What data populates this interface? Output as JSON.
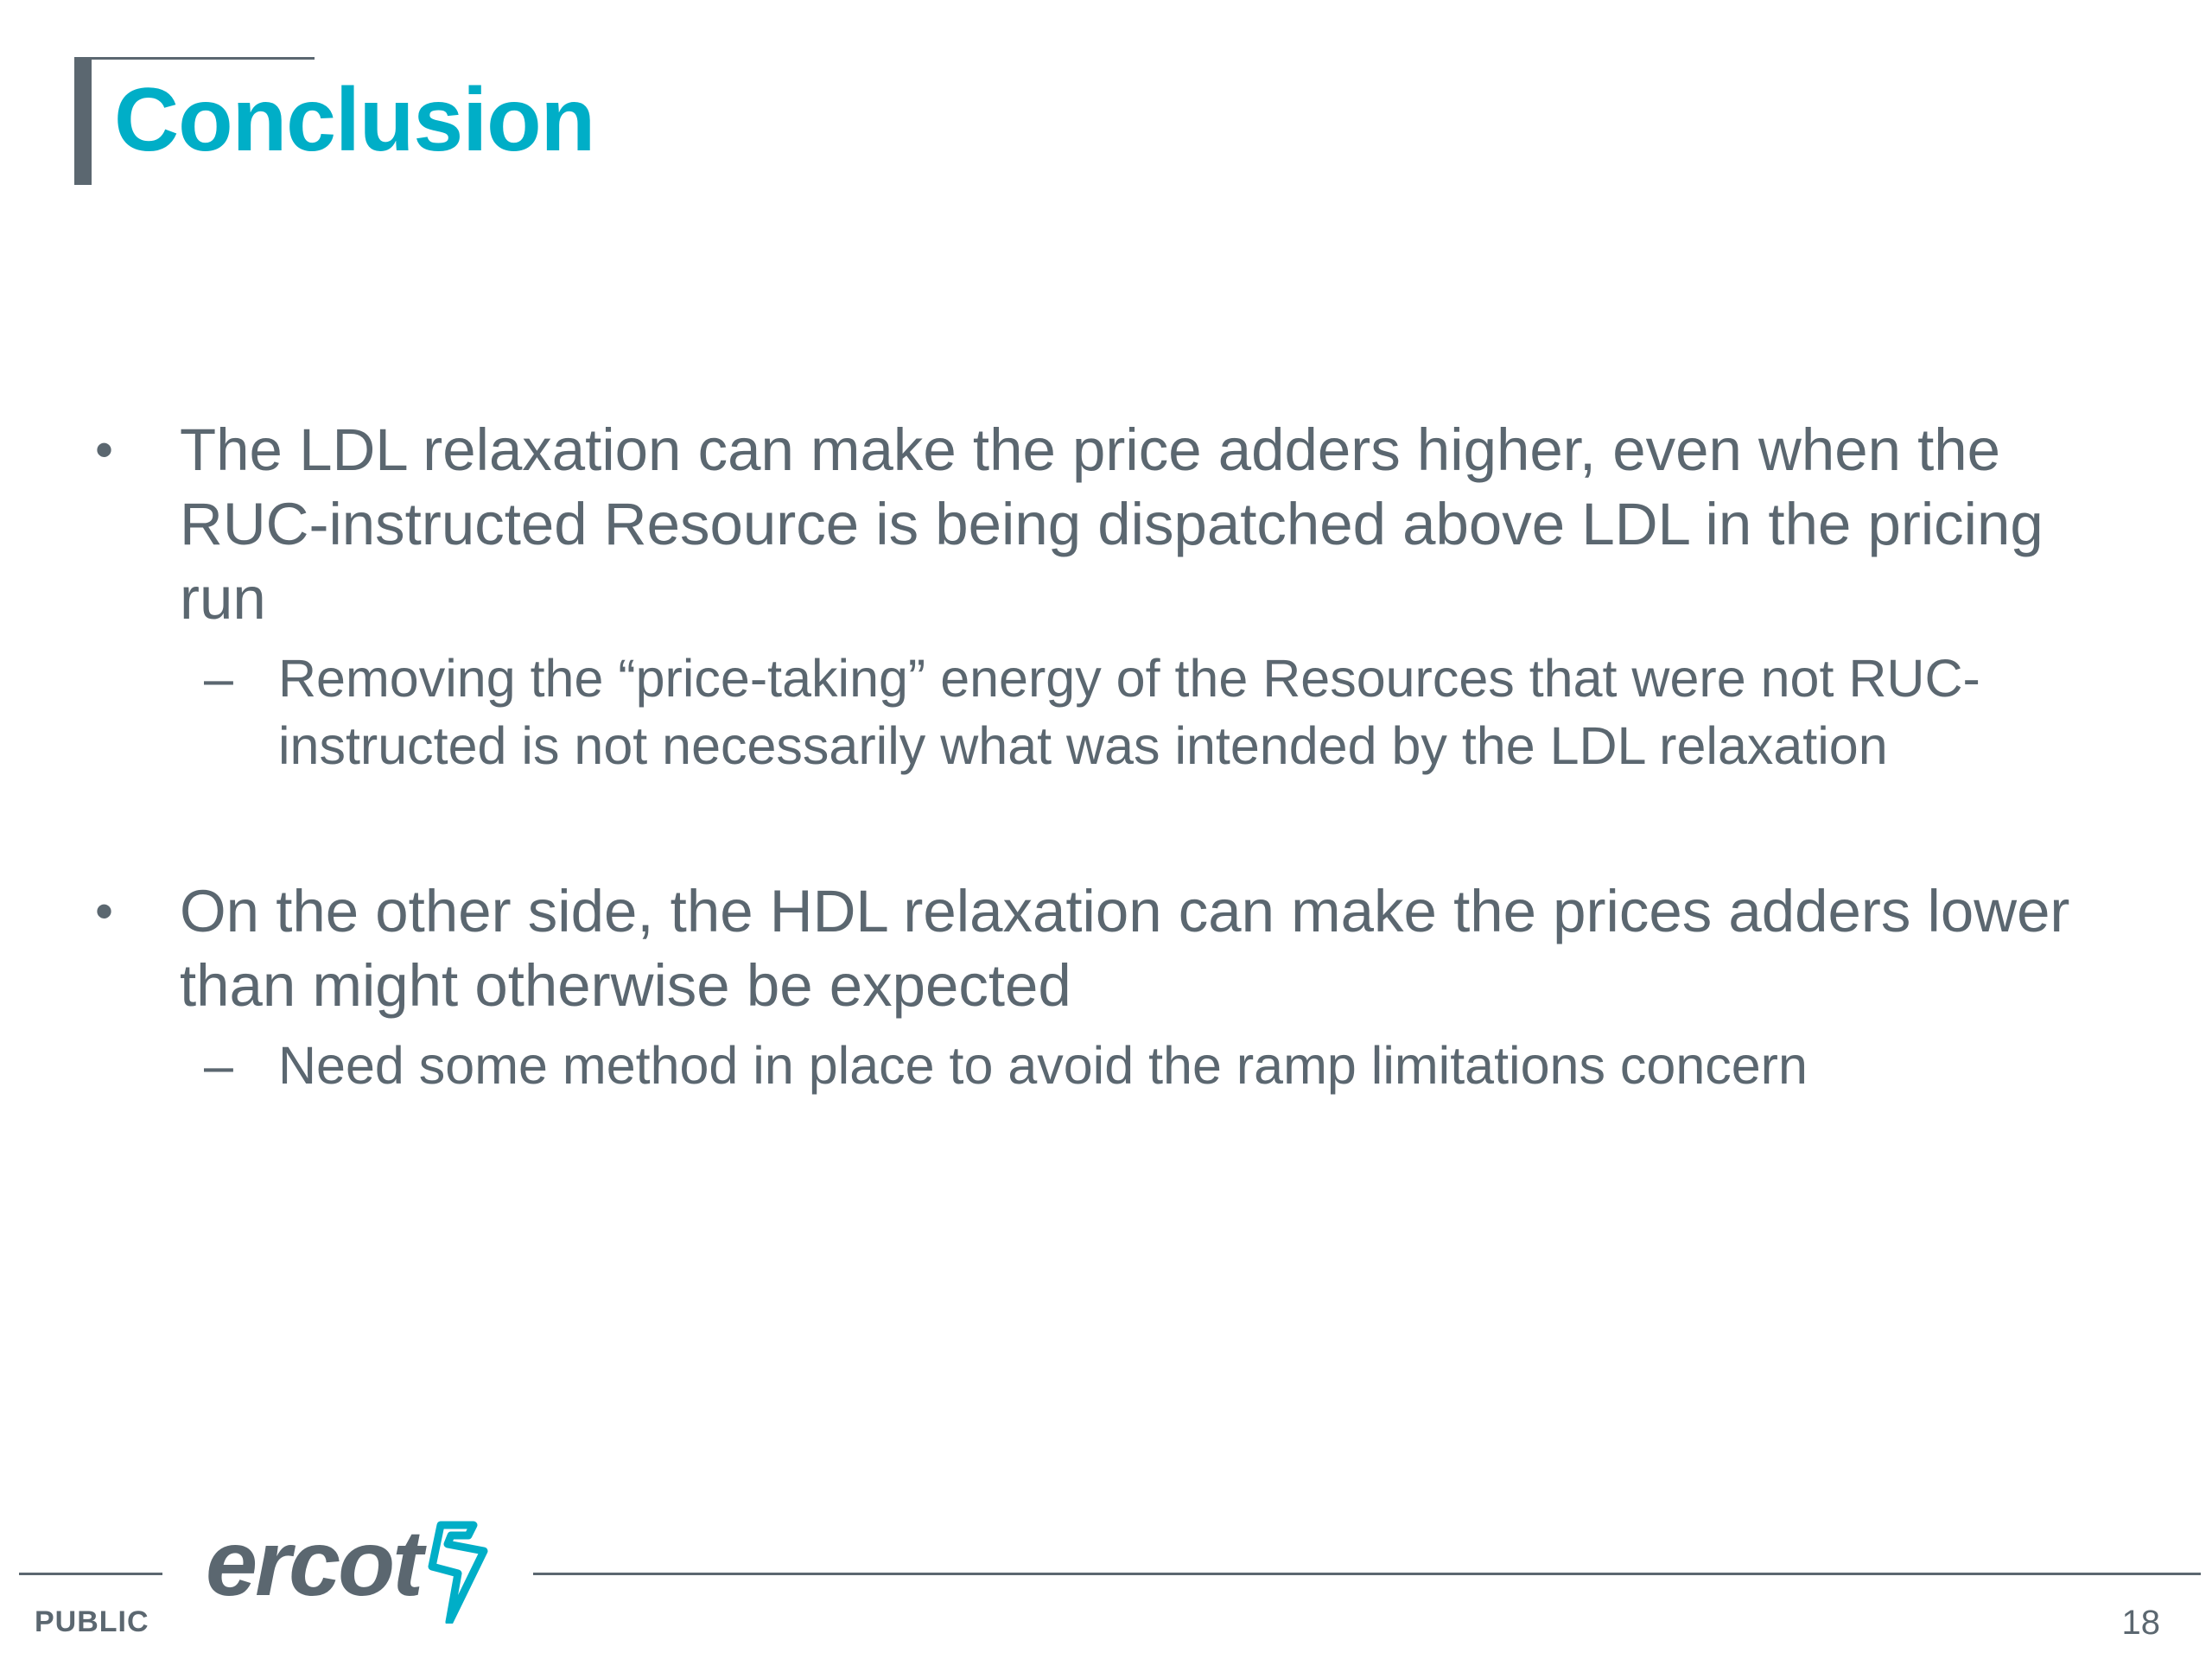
{
  "slide": {
    "title": "Conclusion",
    "bullets": [
      {
        "marker": "•",
        "text": "The LDL relaxation can make the price adders higher, even when the RUC-instructed Resource is being dispatched above LDL in the pricing run",
        "subs": [
          {
            "marker": "–",
            "text": "Removing the “price-taking” energy of the Resources that were not RUC-instructed is not necessarily what was intended by the LDL relaxation"
          }
        ]
      },
      {
        "marker": "•",
        "text": "On the other side, the HDL relaxation can make the prices adders lower than might otherwise be expected",
        "subs": [
          {
            "marker": "–",
            "text": "Need some method in place to avoid the ramp limitations concern"
          }
        ]
      }
    ]
  },
  "footer": {
    "logo_text": "ercot",
    "logo_icon": "ercot-bolt-icon",
    "classification": "PUBLIC",
    "page_number": "18"
  },
  "colors": {
    "title": "#00aec7",
    "text": "#5b6770",
    "accent": "#00aec7"
  }
}
